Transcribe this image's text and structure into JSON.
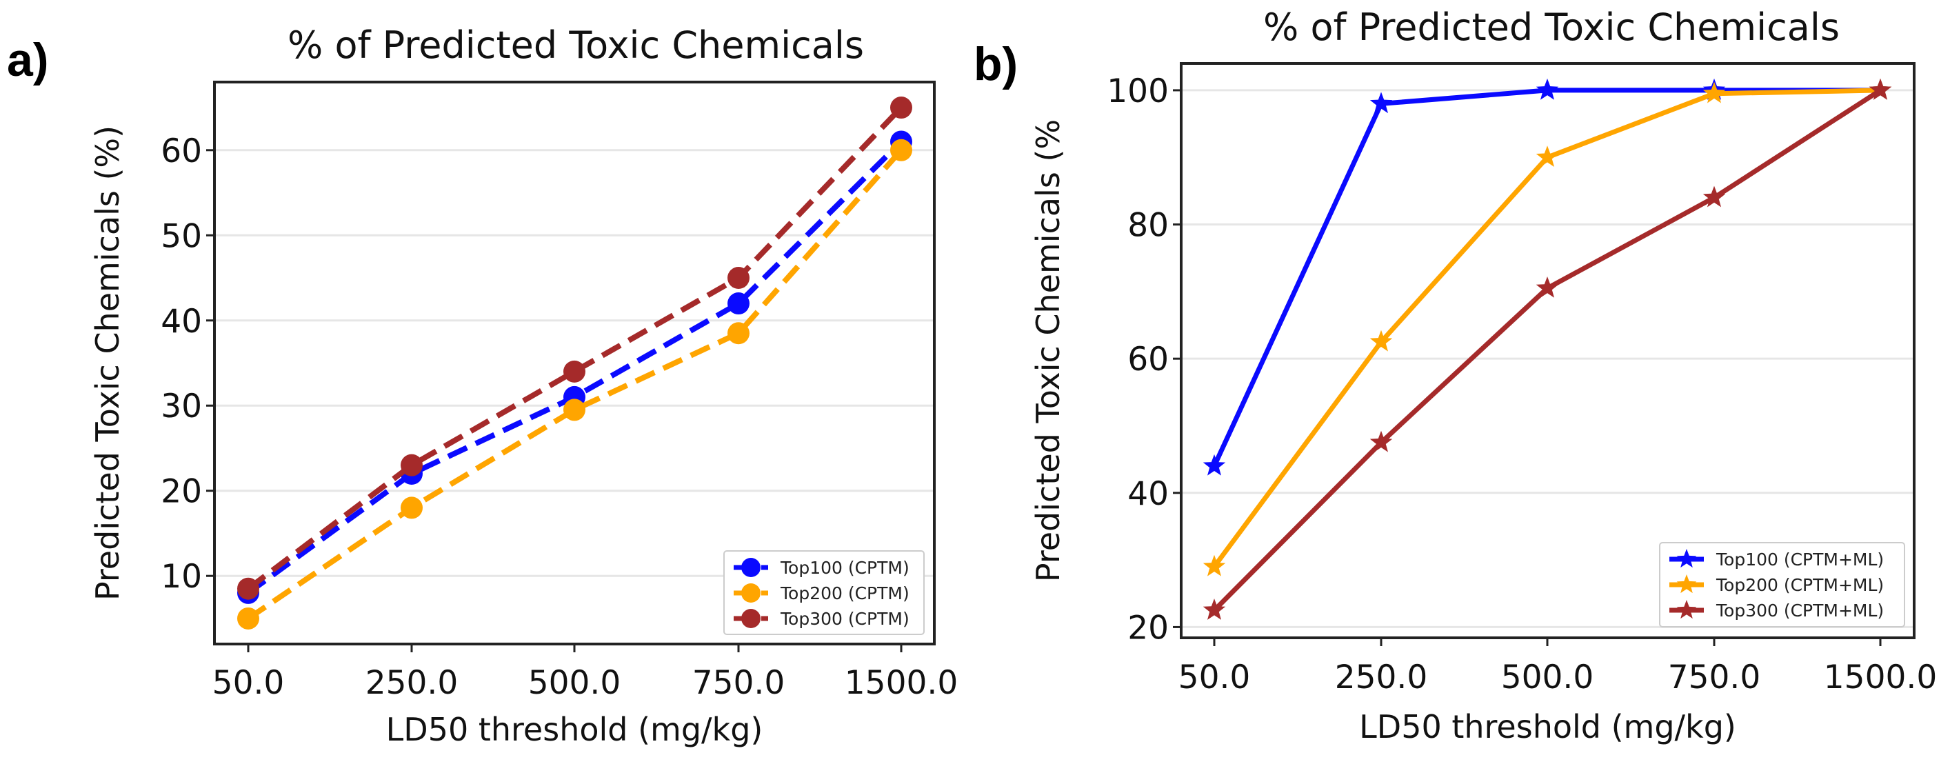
{
  "chart_data": [
    {
      "panel_label": "a)",
      "type": "line",
      "title": "% of Predicted Toxic Chemicals",
      "xlabel": "LD50 threshold (mg/kg)",
      "ylabel": "Predicted Toxic Chemicals (%)",
      "categories": [
        "50.0",
        "250.0",
        "500.0",
        "750.0",
        "1500.0"
      ],
      "ylim": [
        2,
        68
      ],
      "yticks": [
        10,
        20,
        30,
        40,
        50,
        60
      ],
      "grid": "horizontal",
      "line_style": "dashed",
      "marker": "circle",
      "legend_position": "bottom-right",
      "series": [
        {
          "name": "Top100 (CPTM)",
          "color": "#0a0aff",
          "values": [
            8,
            22,
            31,
            42,
            61
          ]
        },
        {
          "name": "Top200 (CPTM)",
          "color": "#ffa500",
          "values": [
            5,
            18,
            29.5,
            38.5,
            60
          ]
        },
        {
          "name": "Top300 (CPTM)",
          "color": "#a52a2a",
          "values": [
            8.5,
            23,
            34,
            45,
            65
          ]
        }
      ]
    },
    {
      "panel_label": "b)",
      "type": "line",
      "title": "% of Predicted Toxic Chemicals",
      "xlabel": "LD50 threshold (mg/kg)",
      "ylabel": "Predicted Toxic Chemicals (%",
      "categories": [
        "50.0",
        "250.0",
        "500.0",
        "750.0",
        "1500.0"
      ],
      "ylim": [
        18.4,
        104
      ],
      "yticks": [
        20,
        40,
        60,
        80,
        100
      ],
      "grid": "horizontal",
      "line_style": "solid",
      "marker": "star",
      "legend_position": "bottom-right",
      "series": [
        {
          "name": "Top100 (CPTM+ML)",
          "color": "#0a0aff",
          "values": [
            44,
            98,
            100,
            100,
            100
          ]
        },
        {
          "name": "Top200 (CPTM+ML)",
          "color": "#ffa500",
          "values": [
            29,
            62.5,
            90,
            99.5,
            100
          ]
        },
        {
          "name": "Top300 (CPTM+ML)",
          "color": "#a52a2a",
          "values": [
            22.5,
            47.5,
            70.5,
            84,
            100
          ]
        }
      ]
    }
  ]
}
